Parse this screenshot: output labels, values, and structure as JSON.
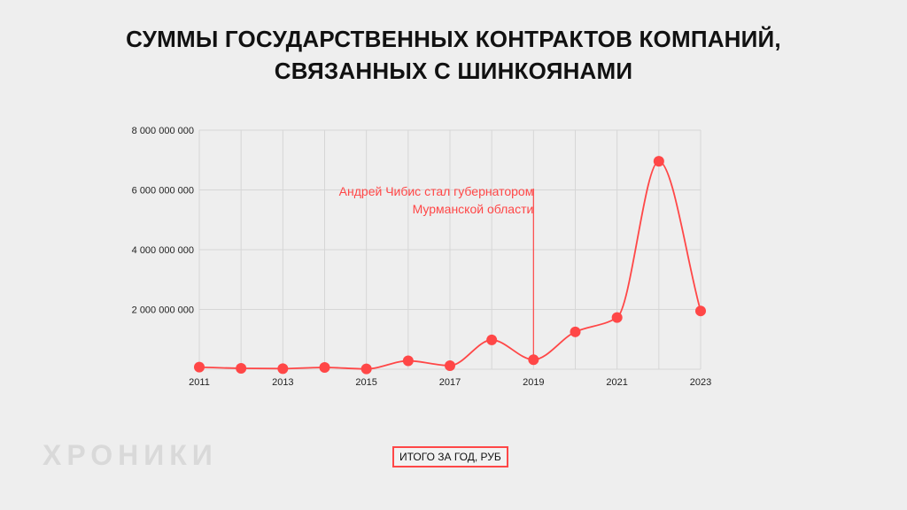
{
  "title_line1": "СУММЫ ГОСУДАРСТВЕННЫХ КОНТРАКТОВ КОМПАНИЙ,",
  "title_line2": "СВЯЗАННЫХ С ШИНКОЯНАМИ",
  "watermark": "ХРОНИКИ",
  "legend_label": "ИТОГО ЗА ГОД, РУБ",
  "colors": {
    "series": "#ff4747",
    "grid": "#d6d6d6",
    "background": "#eeeeee"
  },
  "chart_data": {
    "type": "line",
    "title": "СУММЫ ГОСУДАРСТВЕННЫХ КОНТРАКТОВ КОМПАНИЙ, СВЯЗАННЫХ С ШИНКОЯНАМИ",
    "xlabel": "",
    "ylabel": "",
    "x": [
      2011,
      2012,
      2013,
      2014,
      2015,
      2016,
      2017,
      2018,
      2019,
      2020,
      2021,
      2022,
      2023
    ],
    "x_tick_labels": [
      "2011",
      "2013",
      "2015",
      "2017",
      "2019",
      "2021",
      "2023"
    ],
    "y_tick_labels": [
      "2 000 000 000",
      "4 000 000 000",
      "6 000 000 000",
      "8 000 000 000"
    ],
    "ylim": [
      0,
      8000000000
    ],
    "grid": true,
    "smooth": true,
    "series": [
      {
        "name": "ИТОГО ЗА ГОД, РУБ",
        "values": [
          70000000,
          30000000,
          20000000,
          60000000,
          10000000,
          280000000,
          120000000,
          980000000,
          320000000,
          1250000000,
          1730000000,
          6960000000,
          1950000000
        ]
      }
    ],
    "annotation": {
      "x": 2019,
      "lines": [
        "Андрей Чибис стал губернатором",
        "Мурманской области"
      ]
    }
  }
}
